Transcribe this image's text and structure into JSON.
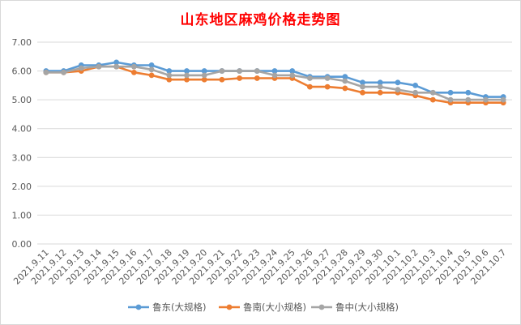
{
  "chart_data": {
    "type": "line",
    "title": "山东地区麻鸡价格走势图",
    "xlabel": "",
    "ylabel": "",
    "ylim": [
      0,
      7
    ],
    "yticks": [
      "0.00",
      "1.00",
      "2.00",
      "3.00",
      "4.00",
      "5.00",
      "6.00",
      "7.00"
    ],
    "grid": true,
    "legend": "bottom",
    "categories": [
      "2021.9.11",
      "2021.9.12",
      "2021.9.13",
      "2021.9.14",
      "2021.9.15",
      "2021.9.16",
      "2021.9.17",
      "2021.9.18",
      "2021.9.19",
      "2021.9.20",
      "2021.9.21",
      "2021.9.22",
      "2021.9.23",
      "2021.9.24",
      "2021.9.25",
      "2021.9.26",
      "2021.9.27",
      "2021.9.28",
      "2021.9.29",
      "2021.9.30",
      "2021.10.1",
      "2021.10.2",
      "2021.10.3",
      "2021.10.4",
      "2021.10.5",
      "2021.10.6",
      "2021.10.7"
    ],
    "series": [
      {
        "name": "鲁东(大规格)",
        "color": "#5b9bd5",
        "values": [
          6.0,
          6.0,
          6.2,
          6.2,
          6.3,
          6.2,
          6.2,
          6.0,
          6.0,
          6.0,
          6.0,
          6.0,
          6.0,
          6.0,
          6.0,
          5.8,
          5.8,
          5.8,
          5.6,
          5.6,
          5.6,
          5.5,
          5.25,
          5.25,
          5.25,
          5.1,
          5.1
        ]
      },
      {
        "name": "鲁南(大小规格)",
        "color": "#ed7d31",
        "values": [
          5.95,
          5.95,
          6.0,
          6.15,
          6.15,
          5.95,
          5.85,
          5.7,
          5.7,
          5.7,
          5.7,
          5.75,
          5.75,
          5.75,
          5.75,
          5.45,
          5.45,
          5.4,
          5.25,
          5.25,
          5.25,
          5.15,
          5.0,
          4.9,
          4.9,
          4.9,
          4.9
        ]
      },
      {
        "name": "鲁中(大小规格)",
        "color": "#a5a5a5",
        "values": [
          5.95,
          5.95,
          6.1,
          6.15,
          6.15,
          6.15,
          6.05,
          5.85,
          5.85,
          5.85,
          6.0,
          6.0,
          6.0,
          5.85,
          5.85,
          5.75,
          5.75,
          5.65,
          5.45,
          5.45,
          5.35,
          5.25,
          5.25,
          5.0,
          5.0,
          5.0,
          5.0
        ]
      }
    ]
  }
}
